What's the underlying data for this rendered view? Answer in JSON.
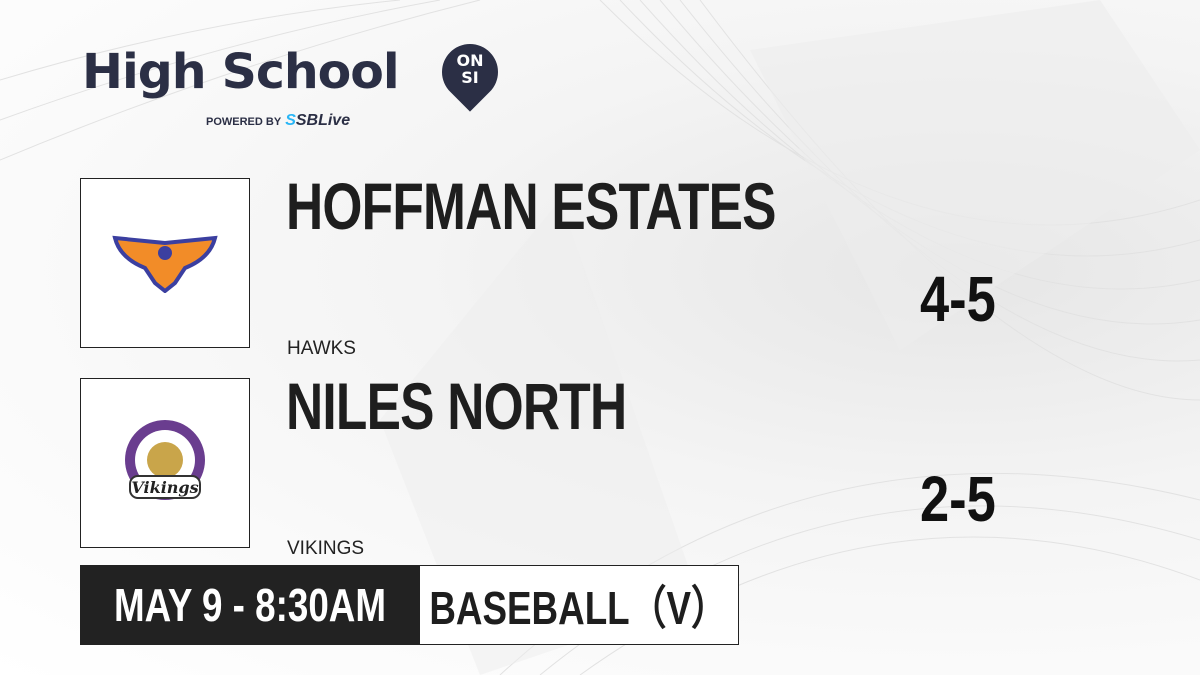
{
  "brand": {
    "title": "High School",
    "badge_top": "ON",
    "badge_bottom": "SI",
    "powered_by": "POWERED BY",
    "partner": "SBLive",
    "colors": {
      "navy": "#2b2f45",
      "partner_accent": "#29b6f6"
    }
  },
  "teams": [
    {
      "name": "HOFFMAN ESTATES",
      "mascot": "HAWKS",
      "record": "4-5",
      "logo": "hawk-logo",
      "colors": {
        "primary": "#f28c28",
        "secondary": "#3b3fa0"
      }
    },
    {
      "name": "NILES NORTH",
      "mascot": "VIKINGS",
      "record": "2-5",
      "logo": "vikings-logo",
      "logo_text": "NILES NORTH HIGH SCHOOL Vikings",
      "colors": {
        "primary": "#6a3d8f"
      }
    }
  ],
  "game": {
    "datetime": "MAY 9 - 8:30AM",
    "sport": "BASEBALL（V）"
  }
}
